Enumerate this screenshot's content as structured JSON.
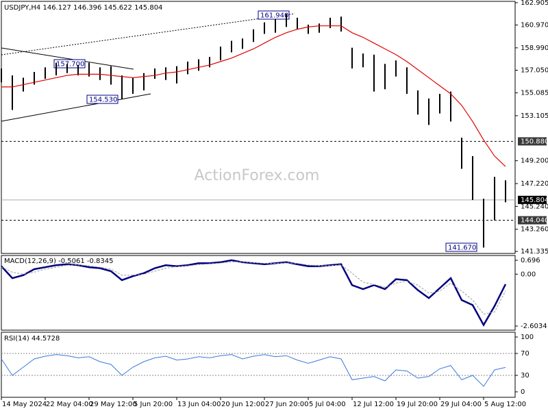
{
  "chart_data": [
    {
      "type": "range",
      "title": "USDJPY,H4  146.127 146.396 145.622 145.804",
      "watermark": "ActionForex.com",
      "color": "#000000",
      "high": [
        157.2,
        156.6,
        156.4,
        156.9,
        157.3,
        157.7,
        157.6,
        157.5,
        157.7,
        157.3,
        157.4,
        156.6,
        156.4,
        156.8,
        157.2,
        157.3,
        157.4,
        157.8,
        158.0,
        158.2,
        159.1,
        159.6,
        159.8,
        160.6,
        161.2,
        161.5,
        161.94,
        161.6,
        161.0,
        161.1,
        161.6,
        161.7,
        159.0,
        158.5,
        158.4,
        157.6,
        157.9,
        157.3,
        155.3,
        154.6,
        155.0,
        155.2,
        151.2,
        149.6,
        145.9,
        147.8,
        147.5
      ],
      "low": [
        156.0,
        153.6,
        155.2,
        155.8,
        156.3,
        156.6,
        156.8,
        156.6,
        156.5,
        156.2,
        155.8,
        154.53,
        155.0,
        155.3,
        156.3,
        156.2,
        155.9,
        156.7,
        157.0,
        157.3,
        157.9,
        158.6,
        158.9,
        159.5,
        160.2,
        160.3,
        160.8,
        160.6,
        160.2,
        160.3,
        160.7,
        160.4,
        157.2,
        157.3,
        155.2,
        155.4,
        156.5,
        155.0,
        153.2,
        152.3,
        153.3,
        152.6,
        148.5,
        145.8,
        141.67,
        144.04,
        145.6
      ],
      "ma": [
        155.6,
        155.6,
        155.8,
        156.0,
        156.2,
        156.4,
        156.6,
        156.7,
        156.7,
        156.7,
        156.6,
        156.5,
        156.4,
        156.5,
        156.6,
        156.8,
        156.9,
        157.1,
        157.3,
        157.5,
        157.8,
        158.1,
        158.5,
        158.9,
        159.4,
        159.9,
        160.3,
        160.6,
        160.8,
        160.9,
        160.9,
        160.9,
        160.3,
        159.9,
        159.4,
        158.9,
        158.4,
        157.8,
        157.1,
        156.4,
        155.7,
        155.0,
        154.0,
        152.6,
        151.0,
        149.6,
        148.7
      ],
      "ma_color": "#e00000",
      "ylim": [
        141.16,
        163.02
      ],
      "yticks": [
        162.905,
        {
          "value": 160.97,
          "label": "160.970"
        },
        {
          "value": 158.99,
          "label": "158.990"
        },
        {
          "value": 157.05,
          "label": "157.050"
        },
        155.085,
        153.105,
        {
          "value": 149.2,
          "label": "149.200"
        },
        {
          "value": 147.22,
          "label": "147.220"
        },
        {
          "value": 145.24,
          "label": "145.240"
        },
        {
          "value": 143.26,
          "label": "143.260"
        },
        141.335
      ],
      "levels": [
        {
          "value": 150.88,
          "label": "150.880",
          "dashed": true
        },
        {
          "value": 145.804,
          "label": "145.804",
          "dashed": false
        },
        {
          "value": 144.04,
          "label": "144.040",
          "dashed": true
        }
      ],
      "annotations": [
        "161.940",
        "157.700",
        "154.530",
        "141.670"
      ]
    },
    {
      "type": "line",
      "title": "MACD(12,26,9) -0.5061 -0.8345",
      "series": [
        {
          "color": "#000080",
          "values": [
            0.4,
            -0.2,
            -0.05,
            0.25,
            0.35,
            0.45,
            0.5,
            0.45,
            0.35,
            0.3,
            0.15,
            -0.3,
            -0.1,
            0.05,
            0.3,
            0.45,
            0.4,
            0.45,
            0.55,
            0.55,
            0.6,
            0.7,
            0.6,
            0.55,
            0.5,
            0.55,
            0.6,
            0.5,
            0.4,
            0.4,
            0.45,
            0.5,
            -0.55,
            -0.75,
            -0.55,
            -0.75,
            -0.25,
            -0.3,
            -0.8,
            -1.2,
            -0.7,
            -0.2,
            -1.3,
            -1.55,
            -2.55,
            -1.6,
            -0.5061
          ]
        },
        {
          "color": "#9a9a9a",
          "values": [
            0.35,
            0.1,
            0.0,
            0.1,
            0.25,
            0.35,
            0.45,
            0.47,
            0.42,
            0.35,
            0.25,
            -0.05,
            -0.05,
            0.0,
            0.15,
            0.3,
            0.38,
            0.42,
            0.48,
            0.52,
            0.56,
            0.62,
            0.62,
            0.58,
            0.54,
            0.54,
            0.57,
            0.54,
            0.46,
            0.42,
            0.43,
            0.47,
            0.05,
            -0.4,
            -0.52,
            -0.65,
            -0.45,
            -0.35,
            -0.55,
            -0.95,
            -0.85,
            -0.45,
            -0.85,
            -1.3,
            -2.0,
            -1.9,
            -0.8345
          ]
        }
      ],
      "ylim": [
        -2.81,
        0.937
      ],
      "yticks": [
        0.696,
        {
          "value": 0,
          "label": "0.00"
        },
        -2.6034
      ]
    },
    {
      "type": "line",
      "title": "RSI(14) 44.5728",
      "color": "#3b78d8",
      "values": [
        60,
        30,
        45,
        60,
        65,
        68,
        66,
        62,
        64,
        55,
        50,
        30,
        45,
        55,
        62,
        65,
        58,
        60,
        64,
        62,
        66,
        68,
        60,
        65,
        68,
        64,
        66,
        58,
        52,
        58,
        64,
        60,
        22,
        25,
        28,
        20,
        40,
        38,
        25,
        28,
        42,
        48,
        22,
        30,
        10,
        40,
        44.5728
      ],
      "ylim": [
        -10,
        108.75
      ],
      "yticks": [
        100,
        70,
        30,
        0
      ],
      "levels": [
        70,
        30
      ],
      "categories": [
        "14 May 2024",
        null,
        null,
        null,
        "22 May 04:00",
        null,
        null,
        null,
        "29 May 12:00",
        null,
        null,
        null,
        "5 Jun 20:00",
        null,
        null,
        null,
        "13 Jun 04:00",
        null,
        null,
        null,
        "20 Jun 12:00",
        null,
        null,
        null,
        "27 Jun 20:00",
        null,
        null,
        null,
        "5 Jul 04:00",
        null,
        null,
        null,
        "12 Jul 12:00",
        null,
        null,
        null,
        "19 Jul 20:00",
        null,
        null,
        null,
        "29 Jul 04:00",
        null,
        null,
        null,
        "5 Aug 12:00",
        null,
        null
      ]
    }
  ]
}
